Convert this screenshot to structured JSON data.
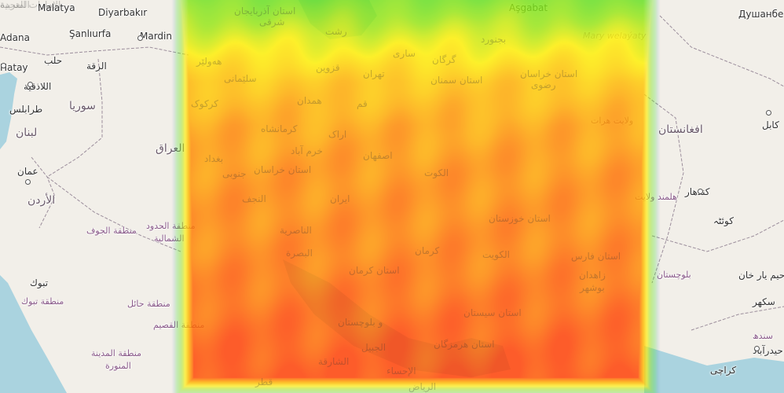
{
  "colors": {
    "land": "#f2efe9",
    "sea": "#aad3df",
    "border": "#9c8e9c",
    "heat_cool": "#3b3bff",
    "heat_green": "#44dd22",
    "heat_yellow": "#ffee00",
    "heat_orange": "#ffa500",
    "heat_red": "#ff3b00"
  },
  "heatmap": {
    "rows": [
      0.35,
      0.55,
      0.72,
      0.8,
      0.84,
      0.86,
      0.88,
      0.92,
      0.96,
      1.0
    ]
  },
  "outside_labels": [
    {
      "text": "Malatya",
      "kind": "city"
    },
    {
      "text": "Diyarbakır",
      "kind": "city"
    },
    {
      "text": "Душанбе",
      "kind": "city"
    },
    {
      "text": "Adana",
      "kind": "city"
    },
    {
      "text": "Şanlıurfa",
      "kind": "city"
    },
    {
      "text": "Mardin",
      "kind": "city"
    },
    {
      "text": "حلب",
      "kind": "city"
    },
    {
      "text": "Hatay",
      "kind": "city"
    },
    {
      "text": "الرقة",
      "kind": "city"
    },
    {
      "text": "اللاذقية",
      "kind": "city"
    },
    {
      "text": "طرابلس",
      "kind": "city"
    },
    {
      "text": "سوريا",
      "kind": "country"
    },
    {
      "text": "لبنان",
      "kind": "country"
    },
    {
      "text": "عمان",
      "kind": "city"
    },
    {
      "text": "الأردن",
      "kind": "country"
    },
    {
      "text": "العراق",
      "kind": "country"
    },
    {
      "text": "منطقة الجوف",
      "kind": "region"
    },
    {
      "text": "منطقة الحدود",
      "kind": "region"
    },
    {
      "text": "الشمالية",
      "kind": "region"
    },
    {
      "text": "تبوك",
      "kind": "city"
    },
    {
      "text": "منطقة تبوك",
      "kind": "region"
    },
    {
      "text": "منطقة حائل",
      "kind": "region"
    },
    {
      "text": "منطقة القصيم",
      "kind": "region"
    },
    {
      "text": "منطقة المدينة",
      "kind": "region"
    },
    {
      "text": "المنورة",
      "kind": "region"
    },
    {
      "text": "افغانستان",
      "kind": "country"
    },
    {
      "text": "کابل",
      "kind": "city"
    },
    {
      "text": "ولایت هرات",
      "kind": "region"
    },
    {
      "text": "کندهار",
      "kind": "city"
    },
    {
      "text": "هلمند ولایت",
      "kind": "region"
    },
    {
      "text": "کوئٹہ",
      "kind": "city"
    },
    {
      "text": "بلوچستان",
      "kind": "region"
    },
    {
      "text": "رحیم یار خان",
      "kind": "city"
    },
    {
      "text": "سکھر",
      "kind": "city"
    },
    {
      "text": "سندھ",
      "kind": "region"
    },
    {
      "text": "حیدرآباد",
      "kind": "city"
    },
    {
      "text": "کراچی",
      "kind": "city"
    },
    {
      "text": "Aşgabat",
      "kind": "city"
    },
    {
      "text": "Mary welaýaty",
      "kind": "italic"
    }
  ],
  "overlay_labels": [
    "استان آذربایجان",
    "شرقی",
    "رشت",
    "هەولێر",
    "قزوین",
    "ساری",
    "گرگان",
    "بجنورد",
    "سلێمانی",
    "تهران",
    "استان سمنان",
    "استان خراسان",
    "رضوی",
    "کرکوک",
    "همدان",
    "قم",
    "کرمانشاه",
    "اراک",
    "بغداد",
    "خرم آباد",
    "اصفهان",
    "استان خراسان",
    "جنوبی",
    "الكوت",
    "النجف",
    "ایران",
    "الناصرية",
    "استان خوزستان",
    "البصرة",
    "کرمان",
    "الكويت",
    "استان فارس",
    "استان کرمان",
    "زاهدان",
    "بوشهر",
    "استان سیستان",
    "و بلوچستان",
    "استان هرمزگان",
    "الجبيل",
    "الشارقة",
    "قطر",
    "الإحساء",
    "الرياض",
    "الإمارات العربية",
    "المتحدة"
  ]
}
